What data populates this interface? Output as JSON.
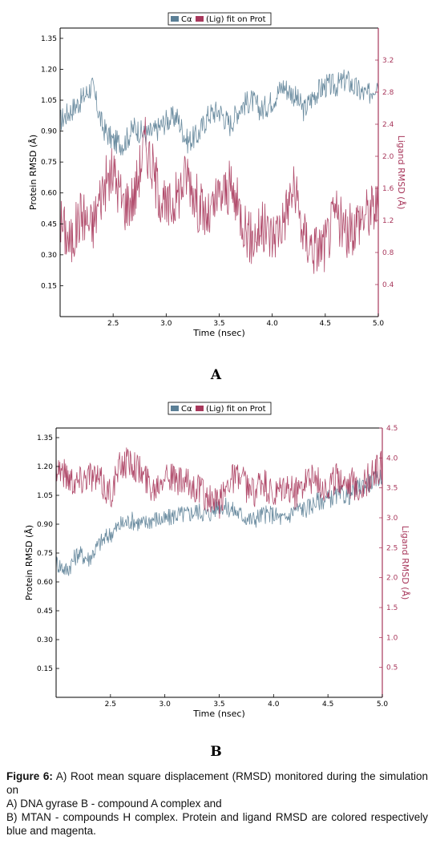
{
  "chart_data": [
    {
      "type": "line",
      "panel_label": "A",
      "xlabel": "Time (nsec)",
      "ylabel_left": "Protein RMSD (Å)",
      "ylabel_right": "Ligand RMSD (Å)",
      "xlim": [
        2.0,
        5.0
      ],
      "ylim_left": [
        0.0,
        1.4
      ],
      "ylim_right": [
        0.0,
        3.6
      ],
      "xticks": [
        "2.5",
        "3.0",
        "3.5",
        "4.0",
        "4.5",
        "5.0"
      ],
      "yticks_left": [
        "0.15",
        "0.30",
        "0.45",
        "0.60",
        "0.75",
        "0.90",
        "1.05",
        "1.20",
        "1.35"
      ],
      "yticks_right": [
        "0.4",
        "0.8",
        "1.2",
        "1.6",
        "2.0",
        "2.4",
        "2.8",
        "3.2"
      ],
      "legend": {
        "position": "top-center",
        "entries": [
          "Cα",
          "(Lig) fit on Prot"
        ]
      },
      "series": [
        {
          "name": "Cα",
          "axis": "left",
          "color": "#5b7f96",
          "x": [
            2.0,
            2.1,
            2.2,
            2.3,
            2.4,
            2.5,
            2.6,
            2.7,
            2.8,
            2.9,
            3.0,
            3.1,
            3.2,
            3.3,
            3.4,
            3.5,
            3.6,
            3.7,
            3.8,
            3.9,
            4.0,
            4.1,
            4.2,
            4.3,
            4.4,
            4.5,
            4.6,
            4.7,
            4.8,
            4.9,
            5.0
          ],
          "y": [
            0.95,
            1.0,
            1.05,
            1.12,
            0.92,
            0.85,
            0.84,
            0.92,
            0.88,
            0.9,
            0.95,
            0.97,
            0.85,
            0.88,
            0.98,
            1.0,
            0.93,
            1.02,
            1.05,
            1.0,
            1.05,
            1.12,
            1.08,
            1.0,
            1.08,
            1.12,
            1.12,
            1.15,
            1.1,
            1.07,
            1.15
          ]
        },
        {
          "name": "(Lig) fit on Prot",
          "axis": "right",
          "color": "#a8385c",
          "x": [
            2.0,
            2.1,
            2.2,
            2.3,
            2.4,
            2.5,
            2.6,
            2.7,
            2.8,
            2.9,
            3.0,
            3.1,
            3.2,
            3.3,
            3.4,
            3.5,
            3.6,
            3.7,
            3.8,
            3.9,
            4.0,
            4.1,
            4.2,
            4.3,
            4.4,
            4.5,
            4.6,
            4.7,
            4.8,
            4.9,
            5.0
          ],
          "y": [
            1.2,
            0.9,
            1.3,
            1.1,
            1.6,
            1.8,
            1.4,
            1.5,
            2.2,
            1.7,
            1.3,
            1.5,
            1.8,
            1.4,
            1.2,
            1.5,
            1.6,
            1.3,
            0.95,
            1.1,
            1.0,
            1.2,
            1.6,
            1.0,
            0.85,
            0.9,
            1.3,
            1.0,
            1.2,
            1.3,
            1.4
          ]
        }
      ]
    },
    {
      "type": "line",
      "panel_label": "B",
      "xlabel": "Time (nsec)",
      "ylabel_left": "Protein RMSD (Å)",
      "ylabel_right": "Ligand RMSD (Å)",
      "xlim": [
        2.0,
        5.0
      ],
      "ylim_left": [
        0.0,
        1.4
      ],
      "ylim_right": [
        0.0,
        4.5
      ],
      "xticks": [
        "2.5",
        "3.0",
        "3.5",
        "4.0",
        "4.5",
        "5.0"
      ],
      "yticks_left": [
        "0.15",
        "0.30",
        "0.45",
        "0.60",
        "0.75",
        "0.90",
        "1.05",
        "1.20",
        "1.35"
      ],
      "yticks_right": [
        "0.5",
        "1.0",
        "1.5",
        "2.0",
        "2.5",
        "3.0",
        "3.5",
        "4.0",
        "4.5"
      ],
      "legend": {
        "position": "top-center",
        "entries": [
          "Cα",
          "(Lig) fit on Prot"
        ]
      },
      "series": [
        {
          "name": "Cα",
          "axis": "left",
          "color": "#5b7f96",
          "x": [
            2.0,
            2.1,
            2.2,
            2.3,
            2.4,
            2.5,
            2.6,
            2.7,
            2.8,
            2.9,
            3.0,
            3.1,
            3.2,
            3.3,
            3.4,
            3.5,
            3.6,
            3.7,
            3.8,
            3.9,
            4.0,
            4.1,
            4.2,
            4.3,
            4.4,
            4.5,
            4.6,
            4.7,
            4.8,
            4.9,
            5.0
          ],
          "y": [
            0.7,
            0.66,
            0.75,
            0.72,
            0.8,
            0.85,
            0.9,
            0.92,
            0.9,
            0.93,
            0.92,
            0.95,
            0.95,
            0.97,
            0.95,
            1.0,
            0.98,
            0.95,
            0.92,
            0.95,
            0.95,
            0.92,
            0.98,
            0.98,
            1.02,
            1.03,
            1.05,
            1.05,
            1.1,
            1.12,
            1.15
          ]
        },
        {
          "name": "(Lig) fit on Prot",
          "axis": "right",
          "color": "#a8385c",
          "x": [
            2.0,
            2.1,
            2.2,
            2.3,
            2.4,
            2.5,
            2.6,
            2.7,
            2.8,
            2.9,
            3.0,
            3.1,
            3.2,
            3.3,
            3.4,
            3.5,
            3.6,
            3.7,
            3.8,
            3.9,
            4.0,
            4.1,
            4.2,
            4.3,
            4.4,
            4.5,
            4.6,
            4.7,
            4.8,
            4.9,
            5.0
          ],
          "y": [
            3.9,
            3.7,
            3.6,
            3.75,
            3.6,
            3.4,
            3.9,
            3.95,
            3.7,
            3.5,
            3.8,
            3.6,
            3.55,
            3.5,
            3.3,
            3.2,
            3.7,
            3.65,
            3.4,
            3.6,
            3.3,
            3.5,
            3.4,
            3.7,
            3.6,
            3.5,
            3.7,
            3.6,
            3.5,
            3.7,
            3.9
          ]
        }
      ]
    }
  ],
  "caption": {
    "figure_label": "Figure 6:",
    "line1": "A) Root mean square displacement (RMSD) monitored during the simulation on",
    "line2": "A) DNA gyrase B - compound A complex and",
    "line3": "B) MTAN - compounds H complex. Protein and ligand RMSD are colored respectively blue and magenta."
  }
}
